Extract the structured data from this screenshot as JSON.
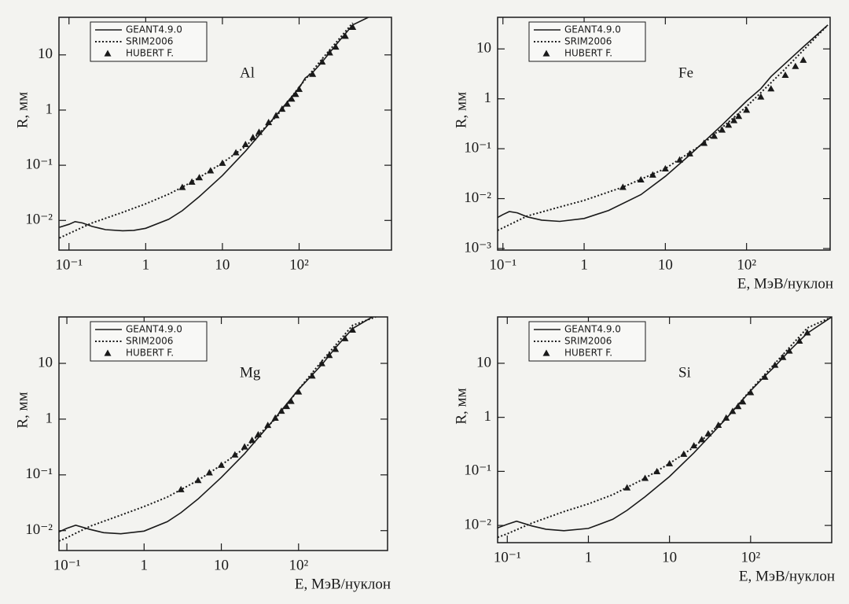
{
  "chart_data": [
    {
      "type": "line",
      "label": "Al",
      "ylabel": "R, мм",
      "xscale": "log",
      "yscale": "log",
      "xlim": [
        0.074,
        1600
      ],
      "ylim": [
        0.0029,
        48
      ],
      "xticks": [
        {
          "value": 0.1,
          "label": "10⁻¹"
        },
        1,
        10,
        {
          "value": 100,
          "label": "10²"
        }
      ],
      "yticks": [
        {
          "value": 0.01,
          "label": "10⁻²"
        },
        {
          "value": 0.1,
          "label": "10⁻¹"
        },
        1,
        10
      ],
      "series": [
        {
          "name": "GEANT4.9.0",
          "color": "#1a1a1a",
          "style": "solid",
          "x": [
            0.075,
            0.1,
            0.12,
            0.15,
            0.2,
            0.3,
            0.5,
            0.7,
            1,
            2,
            3,
            5,
            10,
            20,
            50,
            100,
            120,
            150,
            200,
            300,
            500,
            800
          ],
          "values": [
            0.0075,
            0.0085,
            0.0095,
            0.009,
            0.0078,
            0.0068,
            0.0065,
            0.0066,
            0.0072,
            0.0105,
            0.015,
            0.027,
            0.065,
            0.18,
            0.8,
            2.5,
            3.8,
            4.8,
            7.5,
            15,
            35,
            48
          ]
        },
        {
          "name": "SRIM2006",
          "color": "#1a1a1a",
          "style": "dotted",
          "x": [
            0.075,
            0.1,
            0.2,
            0.5,
            1,
            2,
            3,
            5,
            10,
            20,
            50,
            100,
            200,
            500
          ],
          "values": [
            0.0048,
            0.0058,
            0.009,
            0.014,
            0.02,
            0.03,
            0.04,
            0.06,
            0.11,
            0.22,
            0.75,
            2.6,
            8.5,
            38
          ]
        },
        {
          "name": "HUBERT F.",
          "color": "#1a1a1a",
          "style": "markers",
          "x": [
            3,
            4,
            5,
            7,
            10,
            15,
            20,
            25,
            30,
            40,
            50,
            60,
            70,
            80,
            90,
            100,
            150,
            200,
            250,
            300,
            400,
            500
          ],
          "values": [
            0.04,
            0.05,
            0.06,
            0.08,
            0.11,
            0.17,
            0.24,
            0.32,
            0.4,
            0.6,
            0.8,
            1.05,
            1.3,
            1.6,
            1.95,
            2.4,
            4.5,
            7.5,
            11,
            14,
            22,
            32
          ]
        }
      ]
    },
    {
      "type": "line",
      "label": "Fe",
      "xlabel": "E, МэВ/нуклон",
      "ylabel": "R, мм",
      "xscale": "log",
      "yscale": "log",
      "xlim": [
        0.086,
        1070
      ],
      "ylim": [
        0.00093,
        43
      ],
      "xticks": [
        {
          "value": 0.1,
          "label": "10⁻¹"
        },
        1,
        10,
        {
          "value": 100,
          "label": "10²"
        }
      ],
      "yticks": [
        {
          "value": 0.001,
          "label": "10⁻³"
        },
        {
          "value": 0.01,
          "label": "10⁻²"
        },
        {
          "value": 0.1,
          "label": "10⁻¹"
        },
        1,
        10
      ],
      "series": [
        {
          "name": "GEANT4.9.0",
          "color": "#1a1a1a",
          "style": "solid",
          "x": [
            0.086,
            0.1,
            0.12,
            0.15,
            0.2,
            0.3,
            0.5,
            1,
            2,
            5,
            10,
            20,
            50,
            100,
            150,
            200,
            500,
            1000
          ],
          "values": [
            0.0042,
            0.0048,
            0.0055,
            0.0052,
            0.0043,
            0.0037,
            0.0035,
            0.004,
            0.0058,
            0.012,
            0.028,
            0.075,
            0.3,
            0.9,
            1.6,
            2.8,
            11,
            30
          ]
        },
        {
          "name": "SRIM2006",
          "color": "#1a1a1a",
          "style": "dotted",
          "x": [
            0.086,
            0.1,
            0.2,
            0.5,
            1,
            3,
            10,
            30,
            100,
            300,
            1000
          ],
          "values": [
            0.0023,
            0.0026,
            0.0045,
            0.0068,
            0.0092,
            0.017,
            0.04,
            0.13,
            0.7,
            4,
            30
          ]
        },
        {
          "name": "HUBERT F.",
          "color": "#1a1a1a",
          "style": "markers",
          "x": [
            3,
            5,
            7,
            10,
            15,
            20,
            30,
            40,
            50,
            60,
            70,
            80,
            100,
            150,
            200,
            300,
            400,
            500
          ],
          "values": [
            0.017,
            0.024,
            0.03,
            0.04,
            0.06,
            0.08,
            0.13,
            0.18,
            0.24,
            0.3,
            0.37,
            0.45,
            0.6,
            1.1,
            1.6,
            3,
            4.5,
            6
          ]
        }
      ]
    },
    {
      "type": "line",
      "label": "Mg",
      "xlabel": "E, МэВ/нуклон",
      "ylabel": "R, мм",
      "xscale": "log",
      "yscale": "log",
      "xlim": [
        0.079,
        1420
      ],
      "ylim": [
        0.0044,
        68
      ],
      "xticks": [
        {
          "value": 0.1,
          "label": "10⁻¹"
        },
        1,
        10,
        {
          "value": 100,
          "label": "10²"
        }
      ],
      "yticks": [
        {
          "value": 0.01,
          "label": "10⁻²"
        },
        {
          "value": 0.1,
          "label": "10⁻¹"
        },
        1,
        10
      ],
      "series": [
        {
          "name": "GEANT4.9.0",
          "color": "#1a1a1a",
          "style": "solid",
          "x": [
            0.079,
            0.1,
            0.13,
            0.2,
            0.3,
            0.5,
            1,
            2,
            3,
            5,
            10,
            20,
            50,
            100,
            150,
            200,
            300,
            500,
            900
          ],
          "values": [
            0.0095,
            0.011,
            0.0125,
            0.0105,
            0.0092,
            0.0088,
            0.0098,
            0.0145,
            0.021,
            0.037,
            0.09,
            0.24,
            1.05,
            3.4,
            6.2,
            9.5,
            19,
            42,
            68
          ]
        },
        {
          "name": "SRIM2006",
          "color": "#1a1a1a",
          "style": "dotted",
          "x": [
            0.079,
            0.1,
            0.2,
            0.5,
            1,
            2,
            5,
            10,
            20,
            50,
            100,
            200,
            500,
            1000
          ],
          "values": [
            0.0065,
            0.0075,
            0.012,
            0.019,
            0.027,
            0.04,
            0.08,
            0.15,
            0.3,
            1.0,
            3.4,
            11,
            48,
            68
          ]
        },
        {
          "name": "HUBERT F.",
          "color": "#1a1a1a",
          "style": "markers",
          "x": [
            3,
            5,
            7,
            10,
            15,
            20,
            25,
            30,
            40,
            50,
            60,
            70,
            80,
            100,
            150,
            200,
            250,
            300,
            400,
            500
          ],
          "values": [
            0.055,
            0.08,
            0.11,
            0.15,
            0.23,
            0.32,
            0.42,
            0.53,
            0.78,
            1.05,
            1.4,
            1.7,
            2.1,
            3.1,
            6,
            10,
            14,
            18,
            28,
            40
          ]
        }
      ]
    },
    {
      "type": "line",
      "label": "Si",
      "xlabel": "E, МэВ/нуклон",
      "ylabel": "R, мм",
      "xscale": "log",
      "yscale": "log",
      "xlim": [
        0.076,
        1000
      ],
      "ylim": [
        0.0048,
        72
      ],
      "xticks": [
        {
          "value": 0.1,
          "label": "10⁻¹"
        },
        1,
        10,
        {
          "value": 100,
          "label": "10²"
        }
      ],
      "yticks": [
        {
          "value": 0.01,
          "label": "10⁻²"
        },
        {
          "value": 0.1,
          "label": "10⁻¹"
        },
        1,
        10
      ],
      "series": [
        {
          "name": "GEANT4.9.0",
          "color": "#1a1a1a",
          "style": "solid",
          "x": [
            0.076,
            0.1,
            0.13,
            0.2,
            0.3,
            0.5,
            1,
            2,
            3,
            5,
            10,
            20,
            50,
            100,
            150,
            200,
            300,
            500,
            1000
          ],
          "values": [
            0.009,
            0.0105,
            0.012,
            0.0098,
            0.0085,
            0.008,
            0.0088,
            0.013,
            0.019,
            0.034,
            0.08,
            0.22,
            0.95,
            3.1,
            5.8,
            8.8,
            17,
            36,
            72
          ]
        },
        {
          "name": "SRIM2006",
          "color": "#1a1a1a",
          "style": "dotted",
          "x": [
            0.076,
            0.1,
            0.2,
            0.5,
            1,
            2,
            5,
            10,
            20,
            50,
            100,
            200,
            500,
            1000
          ],
          "values": [
            0.006,
            0.007,
            0.011,
            0.018,
            0.025,
            0.037,
            0.075,
            0.14,
            0.28,
            0.95,
            3.2,
            10,
            45,
            72
          ]
        },
        {
          "name": "HUBERT F.",
          "color": "#1a1a1a",
          "style": "markers",
          "x": [
            3,
            5,
            7,
            10,
            15,
            20,
            25,
            30,
            40,
            50,
            60,
            70,
            80,
            100,
            150,
            200,
            250,
            300,
            400,
            500
          ],
          "values": [
            0.05,
            0.075,
            0.1,
            0.14,
            0.21,
            0.3,
            0.39,
            0.5,
            0.72,
            0.98,
            1.3,
            1.6,
            1.95,
            2.9,
            5.6,
            9.3,
            13,
            17,
            26,
            37
          ]
        }
      ]
    }
  ]
}
